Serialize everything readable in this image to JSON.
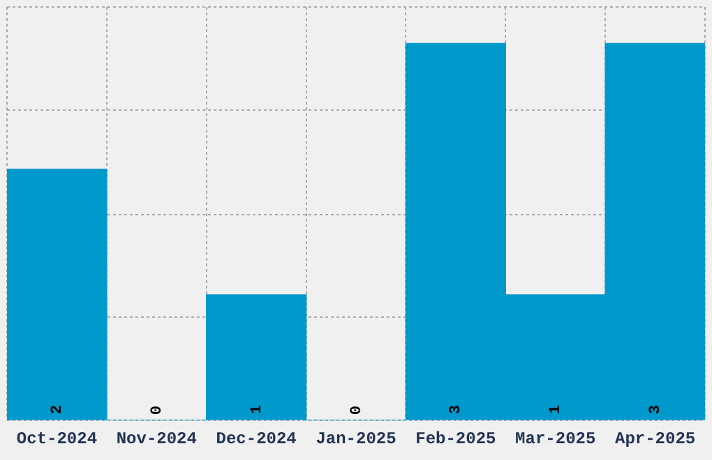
{
  "chart_data": {
    "type": "bar",
    "categories": [
      "Oct-2024",
      "Nov-2024",
      "Dec-2024",
      "Jan-2025",
      "Feb-2025",
      "Mar-2025",
      "Apr-2025"
    ],
    "values": [
      2,
      0,
      1,
      0,
      3,
      1,
      3
    ],
    "color": "#0099cc",
    "ylim": [
      0,
      3.29
    ],
    "yticks": [
      {
        "value": 0,
        "label": null
      },
      {
        "value": 0.82,
        "label": null
      },
      {
        "value": 1.64,
        "label": null
      },
      {
        "value": 2.47,
        "label": null
      },
      {
        "value": 3.29,
        "label": null
      }
    ],
    "grid": true,
    "tick_labels": "x",
    "data_labels": true,
    "legend": false
  }
}
